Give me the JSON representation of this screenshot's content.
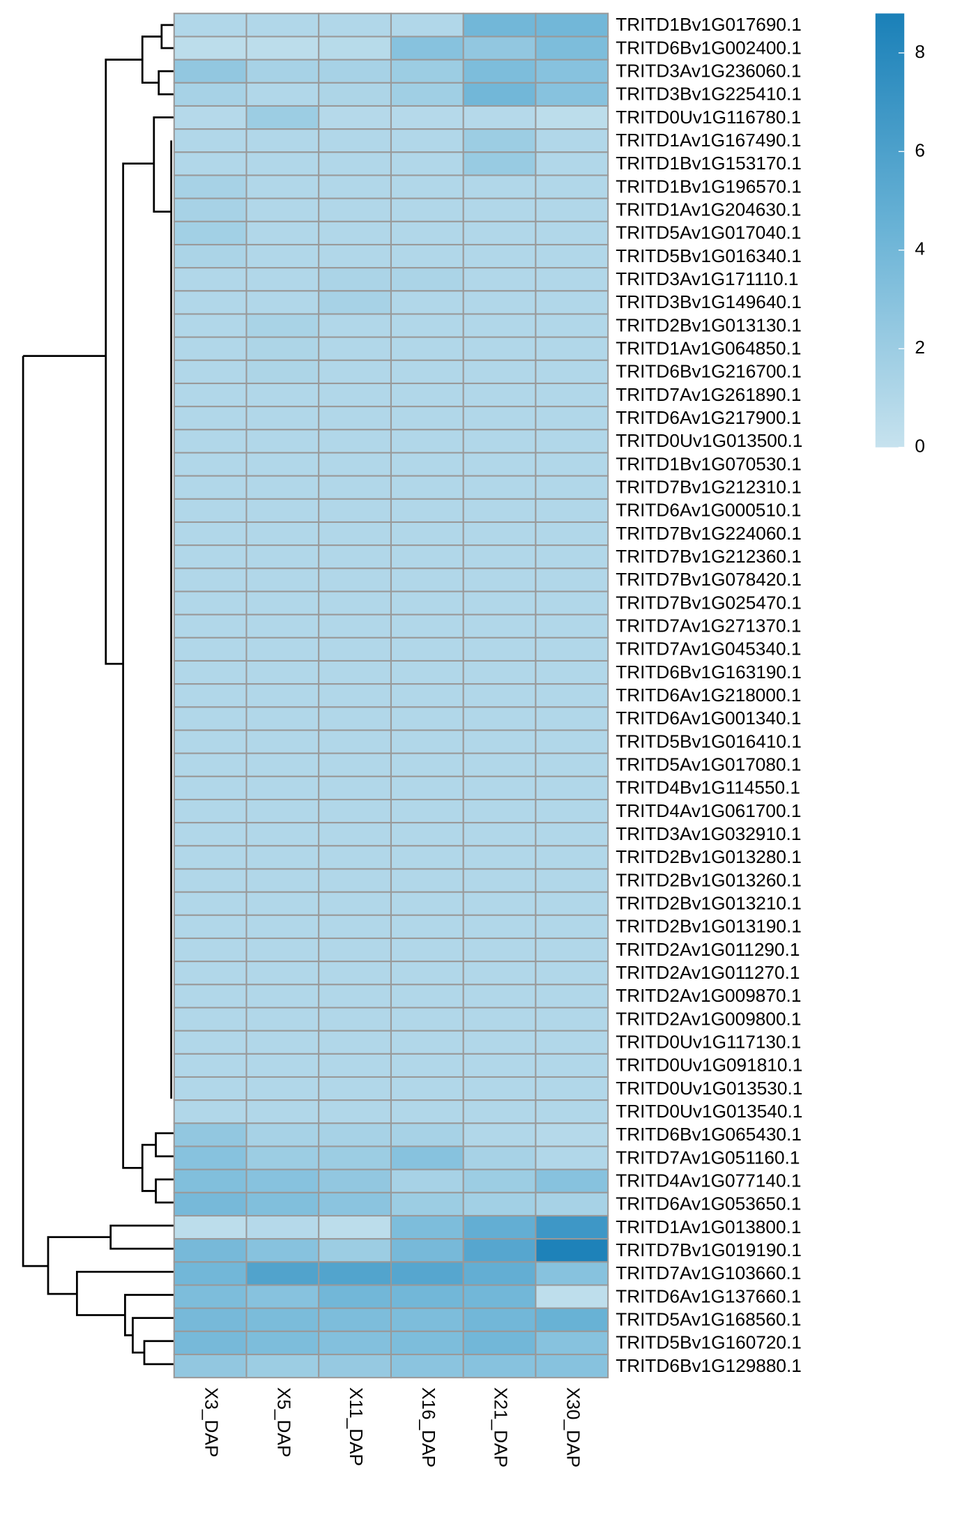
{
  "chart_data": {
    "type": "heatmap",
    "rows": [
      "TRITD1Bv1G017690.1",
      "TRITD6Bv1G002400.1",
      "TRITD3Av1G236060.1",
      "TRITD3Bv1G225410.1",
      "TRITD0Uv1G116780.1",
      "TRITD1Av1G167490.1",
      "TRITD1Bv1G153170.1",
      "TRITD1Bv1G196570.1",
      "TRITD1Av1G204630.1",
      "TRITD5Av1G017040.1",
      "TRITD5Bv1G016340.1",
      "TRITD3Av1G171110.1",
      "TRITD3Bv1G149640.1",
      "TRITD2Bv1G013130.1",
      "TRITD1Av1G064850.1",
      "TRITD6Bv1G216700.1",
      "TRITD7Av1G261890.1",
      "TRITD6Av1G217900.1",
      "TRITD0Uv1G013500.1",
      "TRITD1Bv1G070530.1",
      "TRITD7Bv1G212310.1",
      "TRITD6Av1G000510.1",
      "TRITD7Bv1G224060.1",
      "TRITD7Bv1G212360.1",
      "TRITD7Bv1G078420.1",
      "TRITD7Bv1G025470.1",
      "TRITD7Av1G271370.1",
      "TRITD7Av1G045340.1",
      "TRITD6Bv1G163190.1",
      "TRITD6Av1G218000.1",
      "TRITD6Av1G001340.1",
      "TRITD5Bv1G016410.1",
      "TRITD5Av1G017080.1",
      "TRITD4Bv1G114550.1",
      "TRITD4Av1G061700.1",
      "TRITD3Av1G032910.1",
      "TRITD2Bv1G013280.1",
      "TRITD2Bv1G013260.1",
      "TRITD2Bv1G013210.1",
      "TRITD2Bv1G013190.1",
      "TRITD2Av1G011290.1",
      "TRITD2Av1G011270.1",
      "TRITD2Av1G009870.1",
      "TRITD2Av1G009800.1",
      "TRITD0Uv1G117130.1",
      "TRITD0Uv1G091810.1",
      "TRITD0Uv1G013530.1",
      "TRITD0Uv1G013540.1",
      "TRITD6Bv1G065430.1",
      "TRITD7Av1G051160.1",
      "TRITD4Av1G077140.1",
      "TRITD6Av1G053650.1",
      "TRITD1Av1G013800.1",
      "TRITD7Bv1G019190.1",
      "TRITD7Av1G103660.1",
      "TRITD6Av1G137660.1",
      "TRITD5Av1G168560.1",
      "TRITD5Bv1G160720.1",
      "TRITD6Bv1G129880.1"
    ],
    "columns": [
      "X3_DAP",
      "X5_DAP",
      "X11_DAP",
      "X16_DAP",
      "X21_DAP",
      "X30_DAP"
    ],
    "values": [
      [
        1,
        1,
        1,
        1,
        4,
        4
      ],
      [
        0.5,
        0.5,
        0.7,
        3,
        2.5,
        3.5
      ],
      [
        2.5,
        1.5,
        1.5,
        2,
        3.5,
        3
      ],
      [
        1.5,
        1,
        1.2,
        1.8,
        4,
        3
      ],
      [
        0.8,
        2,
        0.8,
        0.8,
        0.8,
        0.5
      ],
      [
        1,
        1,
        1,
        1,
        2,
        1
      ],
      [
        1,
        1,
        1,
        1,
        2.2,
        1
      ],
      [
        1.5,
        1,
        1,
        1,
        1,
        1
      ],
      [
        1.5,
        1,
        1,
        1,
        1,
        1
      ],
      [
        1.7,
        1,
        1,
        1,
        1,
        1
      ],
      [
        1.3,
        1,
        1,
        1,
        1,
        1
      ],
      [
        1,
        1,
        1.3,
        1.3,
        1,
        1
      ],
      [
        1,
        1,
        1.5,
        1,
        1,
        1
      ],
      [
        1,
        1.4,
        1,
        1,
        1,
        1
      ],
      [
        1,
        1.2,
        1,
        1,
        1,
        1
      ],
      [
        1,
        1.2,
        1,
        1,
        1,
        1
      ],
      [
        1,
        1,
        1,
        1,
        1,
        1
      ],
      [
        1,
        1,
        1,
        1,
        1,
        1
      ],
      [
        1,
        1,
        1,
        1,
        1,
        1
      ],
      [
        1,
        1,
        1,
        1,
        1,
        1
      ],
      [
        1,
        1,
        1,
        1,
        1,
        1
      ],
      [
        1,
        1,
        1,
        1,
        1,
        1
      ],
      [
        1,
        1,
        1,
        1,
        1,
        1
      ],
      [
        1,
        1,
        1,
        1,
        1,
        1
      ],
      [
        1,
        1,
        1,
        1,
        1,
        1
      ],
      [
        1,
        1,
        1,
        1,
        1,
        1
      ],
      [
        1,
        1,
        1,
        1,
        1,
        1
      ],
      [
        1,
        1,
        1,
        1,
        1,
        1
      ],
      [
        1,
        1,
        1,
        1,
        1,
        1
      ],
      [
        1,
        1,
        1,
        1,
        1,
        1
      ],
      [
        1,
        1,
        1,
        1,
        1,
        1
      ],
      [
        1,
        1,
        1,
        1,
        1,
        1
      ],
      [
        1,
        1,
        1,
        1,
        1,
        1
      ],
      [
        1,
        1,
        1,
        1,
        1,
        1
      ],
      [
        1,
        1,
        1,
        1,
        1,
        1
      ],
      [
        1,
        1,
        1,
        1,
        1,
        1
      ],
      [
        1,
        1,
        1,
        1,
        1,
        1
      ],
      [
        1,
        1,
        1,
        1,
        1,
        1
      ],
      [
        1,
        1,
        1,
        1,
        1,
        1
      ],
      [
        1,
        1,
        1,
        1,
        1,
        1
      ],
      [
        1,
        1,
        1,
        1,
        1,
        1
      ],
      [
        1,
        1,
        1,
        1,
        1,
        1
      ],
      [
        1,
        1,
        1,
        1,
        1,
        1
      ],
      [
        1,
        1,
        1,
        1,
        1,
        1
      ],
      [
        1,
        1,
        1,
        1,
        1,
        1
      ],
      [
        1,
        1,
        1,
        1,
        1,
        1
      ],
      [
        1,
        1,
        1,
        1,
        1,
        1
      ],
      [
        1,
        1,
        1,
        1,
        1,
        1
      ],
      [
        2.5,
        1.5,
        1.5,
        1.5,
        1,
        0.8
      ],
      [
        3,
        2,
        2,
        3,
        1.5,
        1
      ],
      [
        3.3,
        3,
        2.5,
        1.5,
        2,
        3
      ],
      [
        3.8,
        3.3,
        2.8,
        2,
        1.7,
        1.5
      ],
      [
        0.5,
        0.8,
        0.5,
        3.5,
        4.8,
        6.8
      ],
      [
        3.8,
        3,
        2,
        3.8,
        5.5,
        8.6
      ],
      [
        4,
        5.8,
        5.7,
        5.5,
        4.8,
        3
      ],
      [
        3.5,
        3,
        4,
        4,
        4,
        0.4
      ],
      [
        3.8,
        3.6,
        3.5,
        3.5,
        4,
        4.5
      ],
      [
        3.8,
        3.5,
        3.2,
        3.5,
        4,
        3
      ],
      [
        2.5,
        2,
        2.3,
        2.8,
        3,
        3
      ]
    ],
    "colors": [
      "#c6e2ee",
      "#6ab3d6",
      "#1a80b8"
    ],
    "clim": [
      0,
      8.8
    ],
    "cticks": [
      0,
      2,
      4,
      6,
      8
    ]
  }
}
